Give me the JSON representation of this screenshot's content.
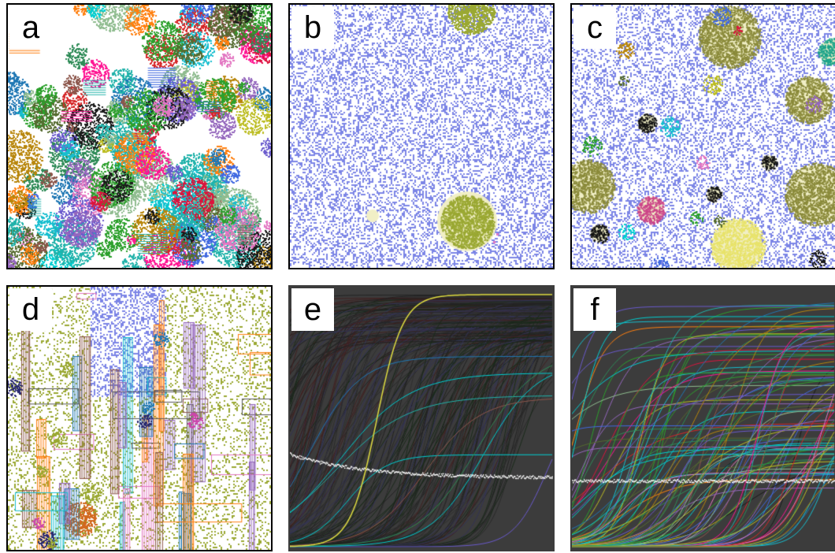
{
  "figure": {
    "panels": [
      {
        "label": "a",
        "kind": "colored-lattice"
      },
      {
        "label": "b",
        "kind": "mostly-blue-lattice"
      },
      {
        "label": "c",
        "kind": "blue-lattice-with-clusters"
      },
      {
        "label": "d",
        "kind": "rectangular-structures"
      },
      {
        "label": "e",
        "kind": "trajectory-plot"
      },
      {
        "label": "f",
        "kind": "trajectory-plot"
      }
    ],
    "colors": {
      "blue": "#7b84e6",
      "olive": "#8a8a3a",
      "pale_yellow": "#f1efc6",
      "plot_bg": "#3c3c3c",
      "white_trace": "#ffffff"
    }
  }
}
